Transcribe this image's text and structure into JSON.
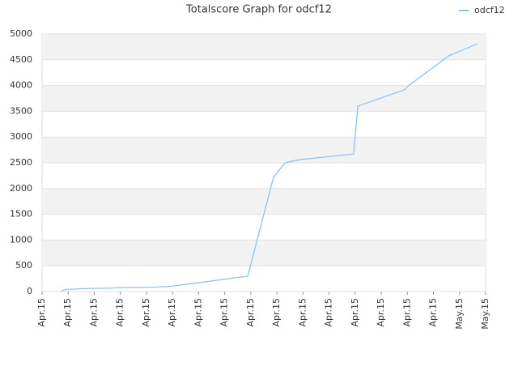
{
  "chart_data": {
    "type": "line",
    "title": "Totalscore Graph for odcf12",
    "series": [
      {
        "name": "odcf12",
        "color": "#8ec3f0",
        "x": [
          0.71,
          0.87,
          1.49,
          2.42,
          3.35,
          4.28,
          4.9,
          5.83,
          7.88,
          8.87,
          9.31,
          9.86,
          11.94,
          12.1,
          13.9,
          14.05,
          15.6,
          16.69
        ],
        "values": [
          0,
          40,
          55,
          65,
          80,
          85,
          100,
          160,
          300,
          2220,
          2500,
          2560,
          2670,
          3600,
          3920,
          4000,
          4580,
          4810
        ]
      }
    ],
    "xlim": [
      0,
      17
    ],
    "xticks": [
      {
        "value": 0,
        "label": "Apr.15"
      },
      {
        "value": 1,
        "label": "Apr.15"
      },
      {
        "value": 2,
        "label": "Apr.15"
      },
      {
        "value": 3,
        "label": "Apr.15"
      },
      {
        "value": 4,
        "label": "Apr.15"
      },
      {
        "value": 5,
        "label": "Apr.15"
      },
      {
        "value": 6,
        "label": "Apr.15"
      },
      {
        "value": 7,
        "label": "Apr.15"
      },
      {
        "value": 8,
        "label": "Apr.15"
      },
      {
        "value": 9,
        "label": "Apr.15"
      },
      {
        "value": 10,
        "label": "Apr.15"
      },
      {
        "value": 11,
        "label": "Apr.15"
      },
      {
        "value": 12,
        "label": "Apr.15"
      },
      {
        "value": 13,
        "label": "Apr.15"
      },
      {
        "value": 14,
        "label": "Apr.15"
      },
      {
        "value": 15,
        "label": "Apr.15"
      },
      {
        "value": 16,
        "label": "May.15"
      },
      {
        "value": 17,
        "label": "May.15"
      }
    ],
    "ylim": [
      0,
      5000
    ],
    "yticks": [
      0,
      500,
      1000,
      1500,
      2000,
      2500,
      3000,
      3500,
      4000,
      4500,
      5000
    ],
    "grid": true,
    "legend": "top-right"
  }
}
